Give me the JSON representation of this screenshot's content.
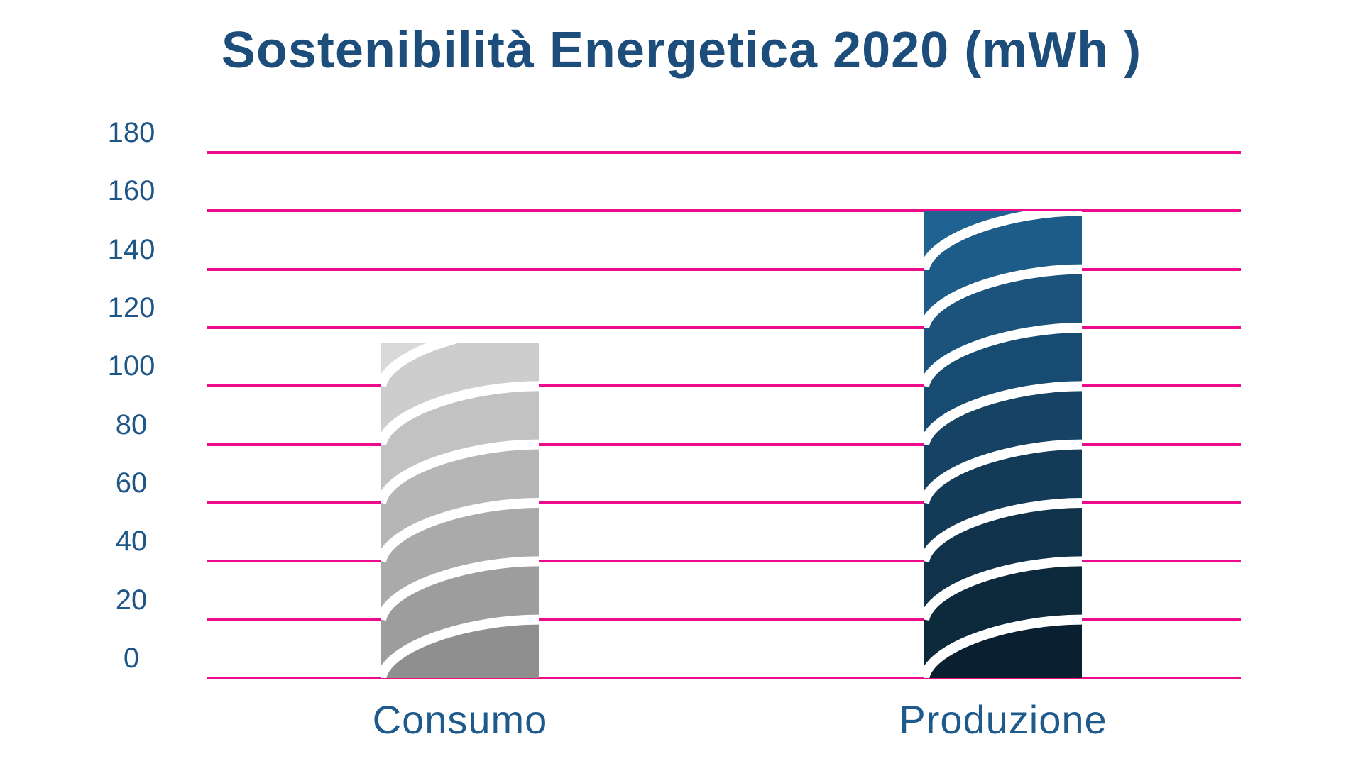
{
  "title": "Sostenibilità Energetica 2020 (mWh )",
  "colors": {
    "background": "#ffffff",
    "title_text": "#1d4e7b",
    "axis_text": "#1f5688",
    "category_text": "#1f5a8c",
    "gridline": "#ed0a8b",
    "wave_stroke": "#ffffff",
    "consumo_shades": [
      "#d9d9d9",
      "#cdcdcd",
      "#c2c2c2",
      "#b6b6b6",
      "#aaaaaa",
      "#9d9d9d",
      "#8f8f8f"
    ],
    "produzione_shades": [
      "#206292",
      "#1d5b88",
      "#1b537d",
      "#184b71",
      "#164364",
      "#133b57",
      "#10324a",
      "#0d293c",
      "#0a1f2f"
    ]
  },
  "chart_data": {
    "type": "bar",
    "title": "Sostenibilità Energetica 2020 (mWh )",
    "categories": [
      "Consumo",
      "Produzione"
    ],
    "values": [
      115,
      160
    ],
    "xlabel": "",
    "ylabel": "",
    "ylim": [
      0,
      180
    ],
    "ytick_step": 20,
    "yticks": [
      180,
      160,
      140,
      120,
      100,
      80,
      60,
      40,
      20,
      0
    ],
    "grid": true,
    "legend_position": "none",
    "style_note": "columns divided into 20-unit bands by white S-wave separators, shades darken toward the base"
  }
}
